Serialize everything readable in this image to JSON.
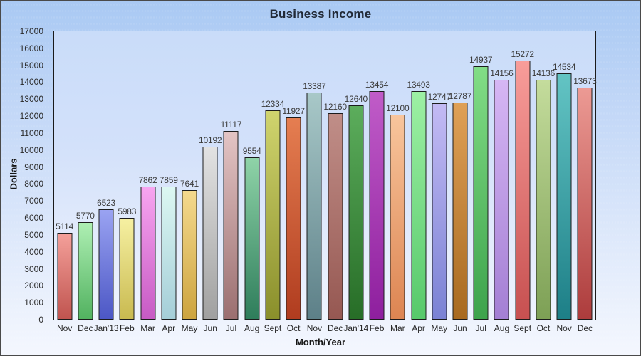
{
  "chart_data": {
    "type": "bar",
    "title": "Business Income",
    "xlabel": "Month/Year",
    "ylabel": "Dollars",
    "ylim": [
      0,
      17000
    ],
    "ytick_step": 1000,
    "yticks": [
      0,
      1000,
      2000,
      3000,
      4000,
      5000,
      6000,
      7000,
      8000,
      9000,
      10000,
      11000,
      12000,
      13000,
      14000,
      15000,
      16000,
      17000
    ],
    "grid": false,
    "legend_position": "none",
    "value_labels_shown": true,
    "categories": [
      "Nov",
      "Dec",
      "Jan'13",
      "Feb",
      "Mar",
      "Apr",
      "May",
      "Jun",
      "Jul",
      "Aug",
      "Sept",
      "Oct",
      "Nov",
      "Dec",
      "Jan'14",
      "Feb",
      "Mar",
      "Apr",
      "May",
      "Jun",
      "Jul",
      "Aug",
      "Sept",
      "Oct",
      "Nov",
      "Dec"
    ],
    "values": [
      5114,
      5770,
      6523,
      5983,
      7862,
      7859,
      7641,
      10192,
      11117,
      9554,
      12334,
      11927,
      13387,
      12160,
      12640,
      13454,
      12100,
      13493,
      12747,
      12787,
      14937,
      14156,
      15272,
      14136,
      14534,
      13673
    ],
    "bar_colors": [
      {
        "top": "#f4a09a",
        "bottom": "#c0544f"
      },
      {
        "top": "#aeefb3",
        "bottom": "#52b260"
      },
      {
        "top": "#9aa3f2",
        "bottom": "#4c57c5"
      },
      {
        "top": "#f6f0a2",
        "bottom": "#c9ba50"
      },
      {
        "top": "#f7a5f0",
        "bottom": "#c75ac4"
      },
      {
        "top": "#dcf7f2",
        "bottom": "#a5ced8"
      },
      {
        "top": "#f4d98d",
        "bottom": "#cda43f"
      },
      {
        "top": "#e2e2e2",
        "bottom": "#a0a0a0"
      },
      {
        "top": "#e3c4c4",
        "bottom": "#9b6f70"
      },
      {
        "top": "#8fd3a8",
        "bottom": "#2e7d5b"
      },
      {
        "top": "#d0d46e",
        "bottom": "#8a8f2b"
      },
      {
        "top": "#e57e51",
        "bottom": "#b03c1f"
      },
      {
        "top": "#a8c8c8",
        "bottom": "#5d8088"
      },
      {
        "top": "#c08e88",
        "bottom": "#965852"
      },
      {
        "top": "#5cad5c",
        "bottom": "#276d27"
      },
      {
        "top": "#c05cc8",
        "bottom": "#8e1f9e"
      },
      {
        "top": "#f8c59c",
        "bottom": "#dd8552"
      },
      {
        "top": "#9df0a4",
        "bottom": "#57c96b"
      },
      {
        "top": "#c3baf4",
        "bottom": "#7a82d4"
      },
      {
        "top": "#dfa057",
        "bottom": "#a86a20"
      },
      {
        "top": "#82dd86",
        "bottom": "#3da34c"
      },
      {
        "top": "#d6b6f4",
        "bottom": "#a47fd4"
      },
      {
        "top": "#f89d9a",
        "bottom": "#c75050"
      },
      {
        "top": "#c4dc9c",
        "bottom": "#7da055"
      },
      {
        "top": "#63c4c4",
        "bottom": "#1d7f87"
      },
      {
        "top": "#ec9a94",
        "bottom": "#ad3c3c"
      }
    ]
  },
  "colors": {
    "frame_border": "#4a4a4a",
    "plot_border": "#1a1a1a",
    "background_top": "#a9c9f3",
    "background_bottom": "#f4f7fe",
    "title_text": "#212936",
    "tick_text": "#2b2b2b",
    "value_label_text": "#3b3b3b"
  }
}
